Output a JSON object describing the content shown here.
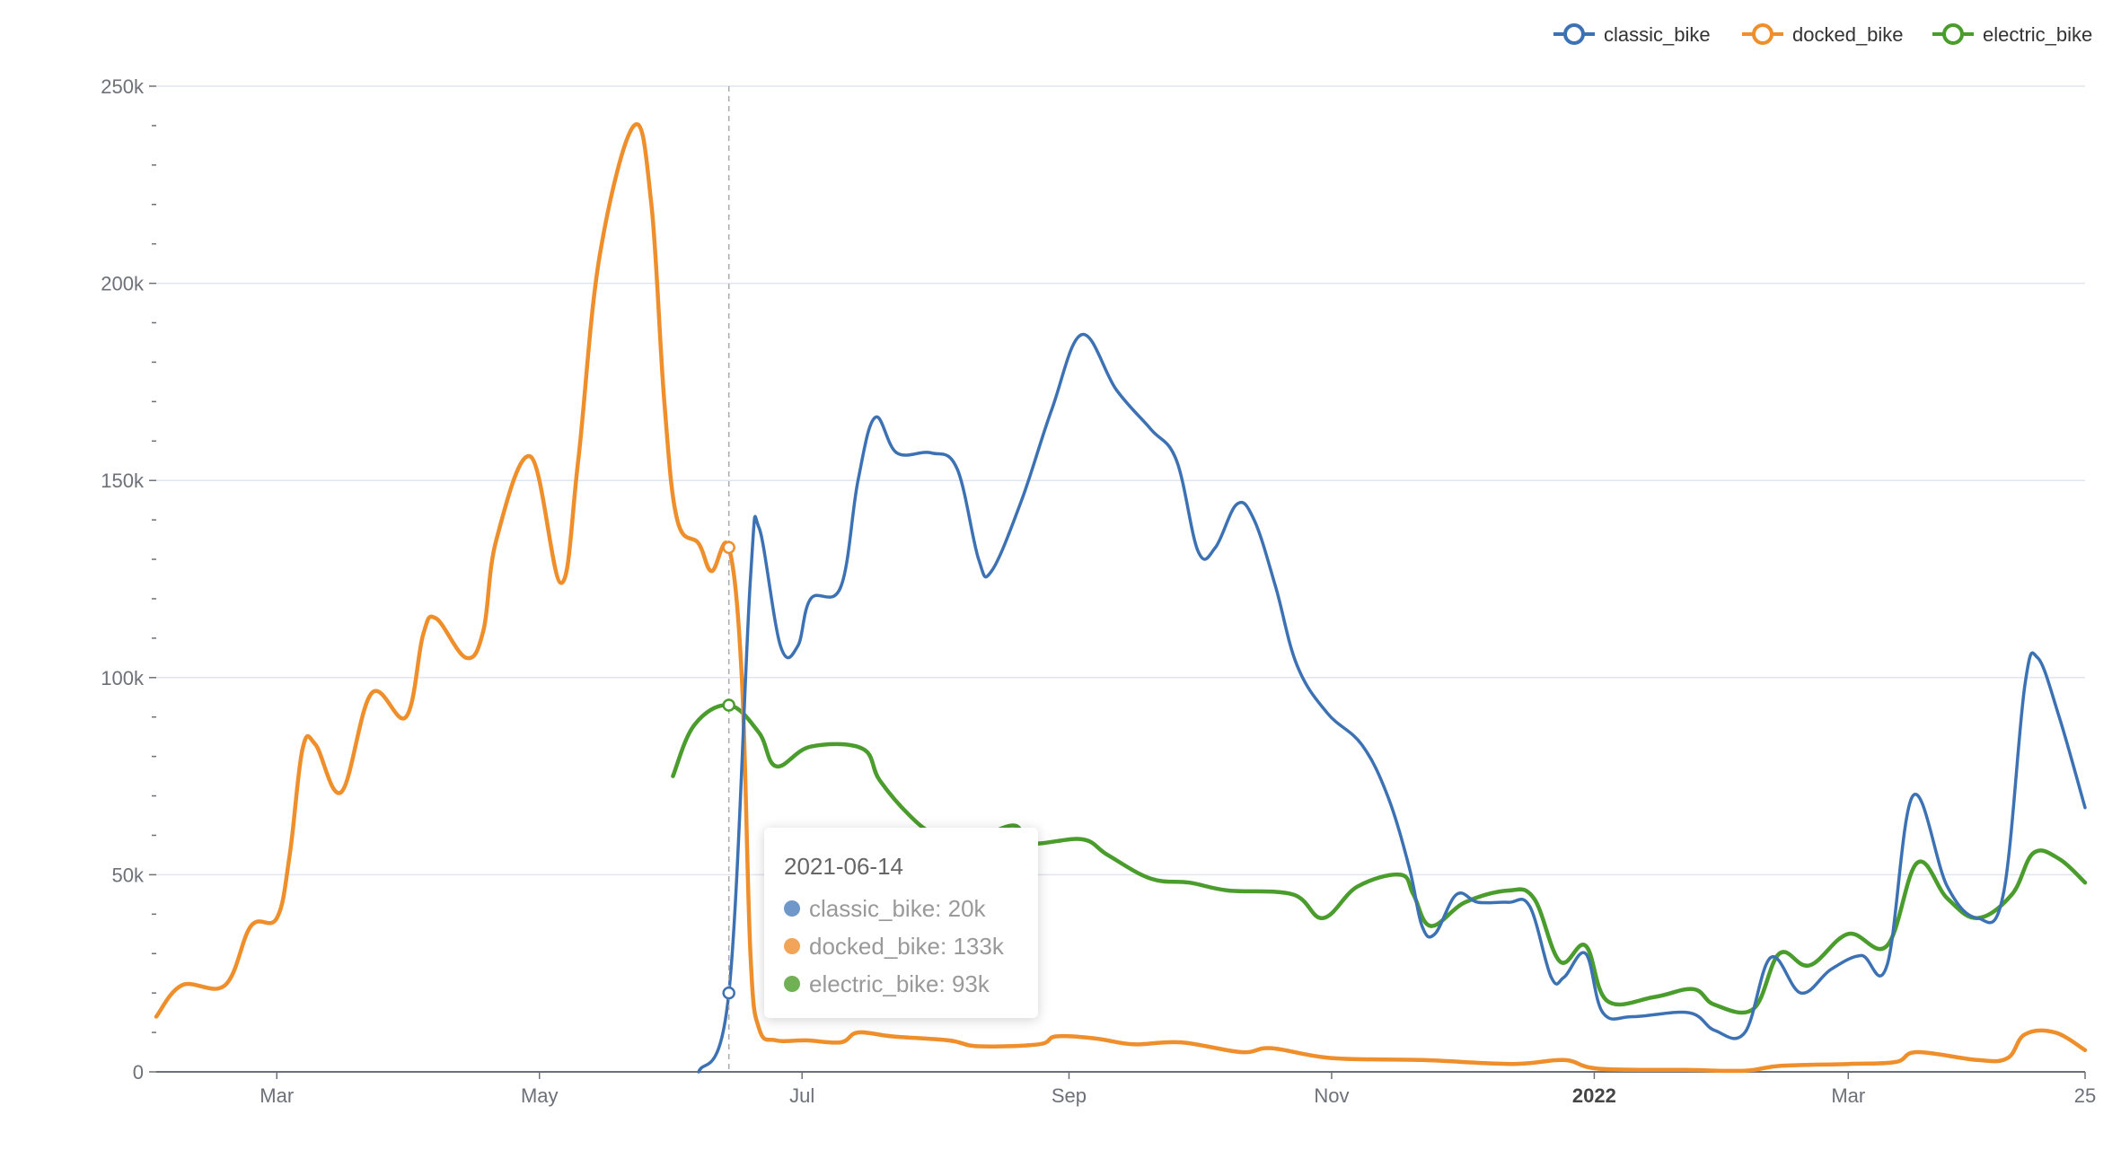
{
  "chart_data": {
    "type": "line",
    "smooth": true,
    "x_axis": {
      "type": "time",
      "min": "2021-02-01",
      "max": "2022-04-25",
      "ticks": [
        {
          "date": "2021-03-01",
          "label": "Mar",
          "bold": false
        },
        {
          "date": "2021-05-01",
          "label": "May",
          "bold": false
        },
        {
          "date": "2021-07-01",
          "label": "Jul",
          "bold": false
        },
        {
          "date": "2021-09-01",
          "label": "Sep",
          "bold": false
        },
        {
          "date": "2021-11-01",
          "label": "Nov",
          "bold": false
        },
        {
          "date": "2022-01-01",
          "label": "2022",
          "bold": true
        },
        {
          "date": "2022-03-01",
          "label": "Mar",
          "bold": false
        },
        {
          "date": "2022-04-25",
          "label": "25",
          "bold": false
        }
      ]
    },
    "y_axis": {
      "min": 0,
      "max": 250000,
      "ticks": [
        {
          "value": 0,
          "label": "0"
        },
        {
          "value": 50000,
          "label": "50k"
        },
        {
          "value": 100000,
          "label": "100k"
        },
        {
          "value": 150000,
          "label": "150k"
        },
        {
          "value": 200000,
          "label": "200k"
        },
        {
          "value": 250000,
          "label": "250k"
        }
      ],
      "minor_step": 10000
    },
    "grid": true,
    "legend": {
      "position": "top-right"
    },
    "series": [
      {
        "name": "classic_bike",
        "color": "#3c72b3",
        "points": [
          [
            "2021-06-07",
            0
          ],
          [
            "2021-06-14",
            20000
          ],
          [
            "2021-06-19",
            125000
          ],
          [
            "2021-06-21",
            138000
          ],
          [
            "2021-06-26",
            108000
          ],
          [
            "2021-06-30",
            108000
          ],
          [
            "2021-07-03",
            120000
          ],
          [
            "2021-07-10",
            123000
          ],
          [
            "2021-07-14",
            150000
          ],
          [
            "2021-07-18",
            166000
          ],
          [
            "2021-07-23",
            157000
          ],
          [
            "2021-07-31",
            157000
          ],
          [
            "2021-08-06",
            153000
          ],
          [
            "2021-08-11",
            130000
          ],
          [
            "2021-08-14",
            127000
          ],
          [
            "2021-08-21",
            145000
          ],
          [
            "2021-08-28",
            168000
          ],
          [
            "2021-09-04",
            187000
          ],
          [
            "2021-09-12",
            173000
          ],
          [
            "2021-09-20",
            163000
          ],
          [
            "2021-09-26",
            155000
          ],
          [
            "2021-10-01",
            132000
          ],
          [
            "2021-10-05",
            133000
          ],
          [
            "2021-10-10",
            144000
          ],
          [
            "2021-10-14",
            140000
          ],
          [
            "2021-10-19",
            123000
          ],
          [
            "2021-10-24",
            103000
          ],
          [
            "2021-10-31",
            91000
          ],
          [
            "2021-11-08",
            83000
          ],
          [
            "2021-11-14",
            70000
          ],
          [
            "2021-11-19",
            52000
          ],
          [
            "2021-11-22",
            37000
          ],
          [
            "2021-11-25",
            35000
          ],
          [
            "2021-11-30",
            45000
          ],
          [
            "2021-12-05",
            43000
          ],
          [
            "2021-12-12",
            43000
          ],
          [
            "2021-12-17",
            42000
          ],
          [
            "2021-12-22",
            24000
          ],
          [
            "2021-12-25",
            24000
          ],
          [
            "2021-12-30",
            30000
          ],
          [
            "2022-01-03",
            15000
          ],
          [
            "2022-01-10",
            14000
          ],
          [
            "2022-01-23",
            15000
          ],
          [
            "2022-01-29",
            10500
          ],
          [
            "2022-02-05",
            10000
          ],
          [
            "2022-02-11",
            29000
          ],
          [
            "2022-02-18",
            20000
          ],
          [
            "2022-02-25",
            26000
          ],
          [
            "2022-03-04",
            29500
          ],
          [
            "2022-03-10",
            27000
          ],
          [
            "2022-03-16",
            70000
          ],
          [
            "2022-03-24",
            47000
          ],
          [
            "2022-03-31",
            39000
          ],
          [
            "2022-04-06",
            45000
          ],
          [
            "2022-04-11",
            98000
          ],
          [
            "2022-04-14",
            105000
          ],
          [
            "2022-04-19",
            90000
          ],
          [
            "2022-04-25",
            67000
          ]
        ]
      },
      {
        "name": "docked_bike",
        "color": "#ef8f2c",
        "points": [
          [
            "2021-02-01",
            14000
          ],
          [
            "2021-02-07",
            22000
          ],
          [
            "2021-02-17",
            22000
          ],
          [
            "2021-02-23",
            37000
          ],
          [
            "2021-03-01",
            39000
          ],
          [
            "2021-03-04",
            55000
          ],
          [
            "2021-03-07",
            82000
          ],
          [
            "2021-03-10",
            83000
          ],
          [
            "2021-03-16",
            71000
          ],
          [
            "2021-03-23",
            96000
          ],
          [
            "2021-03-31",
            90000
          ],
          [
            "2021-04-04",
            111000
          ],
          [
            "2021-04-07",
            115000
          ],
          [
            "2021-04-14",
            105000
          ],
          [
            "2021-04-18",
            112000
          ],
          [
            "2021-04-21",
            135000
          ],
          [
            "2021-04-29",
            156000
          ],
          [
            "2021-05-06",
            124000
          ],
          [
            "2021-05-10",
            155000
          ],
          [
            "2021-05-15",
            207000
          ],
          [
            "2021-05-23",
            240000
          ],
          [
            "2021-05-27",
            220000
          ],
          [
            "2021-05-30",
            170000
          ],
          [
            "2021-06-02",
            140000
          ],
          [
            "2021-06-07",
            134000
          ],
          [
            "2021-06-10",
            127000
          ],
          [
            "2021-06-14",
            133000
          ],
          [
            "2021-06-17",
            100000
          ],
          [
            "2021-06-19",
            30000
          ],
          [
            "2021-06-21",
            11000
          ],
          [
            "2021-06-25",
            8000
          ],
          [
            "2021-07-02",
            8000
          ],
          [
            "2021-07-10",
            7500
          ],
          [
            "2021-07-14",
            10000
          ],
          [
            "2021-07-22",
            9000
          ],
          [
            "2021-08-04",
            8000
          ],
          [
            "2021-08-11",
            6500
          ],
          [
            "2021-08-25",
            7000
          ],
          [
            "2021-08-29",
            9000
          ],
          [
            "2021-09-07",
            8500
          ],
          [
            "2021-09-16",
            7000
          ],
          [
            "2021-09-27",
            7500
          ],
          [
            "2021-10-11",
            5000
          ],
          [
            "2021-10-18",
            6000
          ],
          [
            "2021-11-01",
            3500
          ],
          [
            "2021-11-22",
            3000
          ],
          [
            "2021-12-13",
            2000
          ],
          [
            "2021-12-25",
            3000
          ],
          [
            "2022-01-02",
            800
          ],
          [
            "2022-01-22",
            500
          ],
          [
            "2022-02-05",
            300
          ],
          [
            "2022-02-13",
            1500
          ],
          [
            "2022-03-01",
            2000
          ],
          [
            "2022-03-12",
            2500
          ],
          [
            "2022-03-17",
            5000
          ],
          [
            "2022-03-31",
            3000
          ],
          [
            "2022-04-07",
            3500
          ],
          [
            "2022-04-11",
            9500
          ],
          [
            "2022-04-18",
            10000
          ],
          [
            "2022-04-25",
            5500
          ]
        ]
      },
      {
        "name": "electric_bike",
        "color": "#4a9d2c",
        "points": [
          [
            "2021-06-01",
            75000
          ],
          [
            "2021-06-06",
            88000
          ],
          [
            "2021-06-14",
            93000
          ],
          [
            "2021-06-21",
            86000
          ],
          [
            "2021-06-25",
            77500
          ],
          [
            "2021-07-03",
            82500
          ],
          [
            "2021-07-15",
            82000
          ],
          [
            "2021-07-19",
            74000
          ],
          [
            "2021-07-26",
            65000
          ],
          [
            "2021-08-01",
            60000
          ],
          [
            "2021-08-08",
            58000
          ],
          [
            "2021-08-19",
            62500
          ],
          [
            "2021-08-23",
            58000
          ],
          [
            "2021-09-04",
            59000
          ],
          [
            "2021-09-10",
            55000
          ],
          [
            "2021-09-20",
            49000
          ],
          [
            "2021-09-29",
            48000
          ],
          [
            "2021-10-08",
            46000
          ],
          [
            "2021-10-23",
            45000
          ],
          [
            "2021-10-30",
            39000
          ],
          [
            "2021-11-07",
            47000
          ],
          [
            "2021-11-17",
            50000
          ],
          [
            "2021-11-20",
            45000
          ],
          [
            "2021-11-24",
            37000
          ],
          [
            "2021-12-02",
            43000
          ],
          [
            "2021-12-12",
            46000
          ],
          [
            "2021-12-18",
            44000
          ],
          [
            "2021-12-24",
            28000
          ],
          [
            "2021-12-30",
            32000
          ],
          [
            "2022-01-04",
            18000
          ],
          [
            "2022-01-15",
            19000
          ],
          [
            "2022-01-24",
            21000
          ],
          [
            "2022-01-29",
            17000
          ],
          [
            "2022-02-07",
            16000
          ],
          [
            "2022-02-13",
            30000
          ],
          [
            "2022-02-20",
            27000
          ],
          [
            "2022-03-01",
            35000
          ],
          [
            "2022-03-10",
            32000
          ],
          [
            "2022-03-17",
            53000
          ],
          [
            "2022-03-24",
            44000
          ],
          [
            "2022-03-31",
            39000
          ],
          [
            "2022-04-08",
            45000
          ],
          [
            "2022-04-13",
            55500
          ],
          [
            "2022-04-19",
            54000
          ],
          [
            "2022-04-25",
            48000
          ]
        ]
      }
    ],
    "crosshair": {
      "date": "2021-06-14"
    },
    "tooltip": {
      "title": "2021-06-14",
      "rows": [
        {
          "series": "classic_bike",
          "text": "classic_bike: 20k",
          "value": 20000,
          "color": "#6f98c9"
        },
        {
          "series": "docked_bike",
          "text": "docked_bike: 133k",
          "value": 133000,
          "color": "#f2a559"
        },
        {
          "series": "electric_bike",
          "text": "electric_bike: 93k",
          "value": 93000,
          "color": "#70b155"
        }
      ]
    }
  }
}
